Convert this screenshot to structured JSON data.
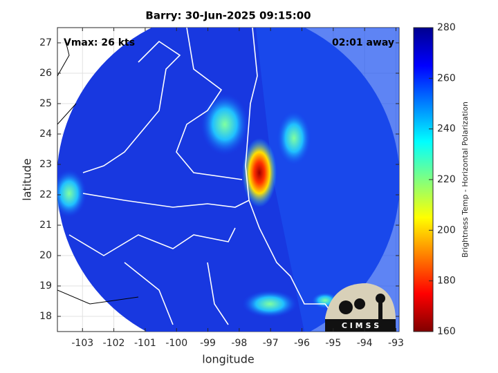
{
  "chart_data": {
    "type": "map",
    "title": "Barry: 30-Jun-2025 09:15:00",
    "annotations": [
      "Vmax: 26 kts",
      "02:01 away"
    ],
    "xlabel": "longitude",
    "ylabel": "latitude",
    "xlim": [
      -103.8,
      -92.9
    ],
    "xticks": [
      -103,
      -102,
      -101,
      -100,
      -99,
      -98,
      -97,
      -96,
      -95,
      -94,
      -93
    ],
    "ylim": [
      17.5,
      27.5
    ],
    "yticks": [
      18,
      19,
      20,
      21,
      22,
      23,
      24,
      25,
      26,
      27
    ],
    "grid": true,
    "colorbar": {
      "label": "Brightness Temp - Horizontal Polarization",
      "colormap": "jet",
      "lim": [
        160,
        280
      ],
      "ticks": [
        160,
        180,
        200,
        220,
        240,
        260,
        280
      ]
    },
    "logo": "C I M S S"
  }
}
